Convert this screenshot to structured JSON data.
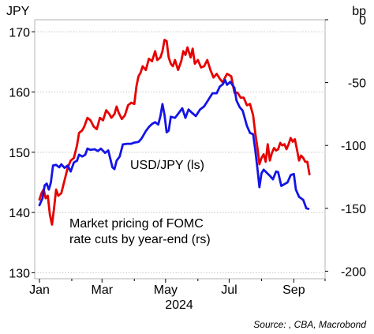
{
  "chart_data": {
    "type": "line",
    "left_axis_unit": "JPY",
    "right_axis_unit": "bp",
    "year_label": "2024",
    "source": "Source: , CBA, Macrobond",
    "grid": true,
    "ylim_left": [
      129,
      172
    ],
    "ylim_right": [
      -206,
      0
    ],
    "left_ticks": [
      130,
      140,
      150,
      160,
      170
    ],
    "right_ticks": [
      0,
      -50,
      -100,
      -150,
      -200
    ],
    "x_ticks": [
      {
        "label": "Jan",
        "day": 0
      },
      {
        "label": "Mar",
        "day": 60
      },
      {
        "label": "May",
        "day": 121
      },
      {
        "label": "Jul",
        "day": 182
      },
      {
        "label": "Sep",
        "day": 244
      }
    ],
    "xlim_days": [
      0,
      274
    ],
    "series": [
      {
        "name": "USD/JPY (ls)",
        "axis": "left",
        "color": "#1414e6",
        "points": [
          [
            0,
            141.2
          ],
          [
            3,
            142.4
          ],
          [
            5,
            144.5
          ],
          [
            7,
            144.8
          ],
          [
            9,
            143.8
          ],
          [
            11,
            145.0
          ],
          [
            13,
            147.8
          ],
          [
            16,
            147.9
          ],
          [
            19,
            147.5
          ],
          [
            21,
            148.0
          ],
          [
            24,
            147.4
          ],
          [
            27,
            147.8
          ],
          [
            30,
            146.8
          ],
          [
            33,
            148.3
          ],
          [
            36,
            148.6
          ],
          [
            38,
            149.6
          ],
          [
            41,
            149.3
          ],
          [
            44,
            149.6
          ],
          [
            46,
            150.6
          ],
          [
            49,
            150.4
          ],
          [
            53,
            150.5
          ],
          [
            56,
            150.2
          ],
          [
            59,
            150.6
          ],
          [
            63,
            149.9
          ],
          [
            66,
            150.3
          ],
          [
            70,
            147.5
          ],
          [
            72,
            147.2
          ],
          [
            74,
            148.6
          ],
          [
            77,
            149.3
          ],
          [
            80,
            151.3
          ],
          [
            84,
            151.4
          ],
          [
            88,
            151.4
          ],
          [
            91,
            151.6
          ],
          [
            95,
            151.7
          ],
          [
            98,
            152.3
          ],
          [
            102,
            153.5
          ],
          [
            105,
            154.2
          ],
          [
            108,
            154.7
          ],
          [
            111,
            155.0
          ],
          [
            114,
            154.6
          ],
          [
            116,
            156.0
          ],
          [
            118,
            158.0
          ],
          [
            120,
            156.2
          ],
          [
            122,
            153.3
          ],
          [
            124,
            153.6
          ],
          [
            126,
            155.9
          ],
          [
            130,
            155.7
          ],
          [
            134,
            156.6
          ],
          [
            137,
            157.3
          ],
          [
            140,
            155.7
          ],
          [
            143,
            157.1
          ],
          [
            146,
            156.6
          ],
          [
            150,
            156.0
          ],
          [
            154,
            157.1
          ],
          [
            158,
            157.6
          ],
          [
            162,
            158.7
          ],
          [
            166,
            159.8
          ],
          [
            170,
            159.8
          ],
          [
            173,
            160.9
          ],
          [
            176,
            161.3
          ],
          [
            178,
            162.0
          ],
          [
            180,
            161.2
          ],
          [
            183,
            161.7
          ],
          [
            187,
            160.7
          ],
          [
            189,
            158.6
          ],
          [
            192,
            157.5
          ],
          [
            195,
            156.9
          ],
          [
            199,
            154.4
          ],
          [
            202,
            153.2
          ],
          [
            205,
            153.0
          ],
          [
            207,
            150.4
          ],
          [
            209,
            147.5
          ],
          [
            211,
            144.2
          ],
          [
            213,
            146.5
          ],
          [
            215,
            147.1
          ],
          [
            218,
            146.6
          ],
          [
            221,
            146.1
          ],
          [
            224,
            145.5
          ],
          [
            227,
            146.8
          ],
          [
            229,
            146.7
          ],
          [
            232,
            144.4
          ],
          [
            235,
            144.7
          ],
          [
            238,
            145.0
          ],
          [
            241,
            146.2
          ],
          [
            244,
            146.4
          ],
          [
            246,
            143.8
          ],
          [
            249,
            142.6
          ],
          [
            253,
            142.1
          ],
          [
            256,
            140.7
          ],
          [
            258,
            140.6
          ]
        ]
      },
      {
        "name": "Market pricing of FOMC rate cuts by year-end (rs)",
        "axis": "right",
        "color": "#e60000",
        "points": [
          [
            0,
            -143
          ],
          [
            2,
            -138
          ],
          [
            4,
            -135
          ],
          [
            6,
            -142
          ],
          [
            8,
            -140
          ],
          [
            10,
            -155
          ],
          [
            12,
            -163
          ],
          [
            14,
            -150
          ],
          [
            16,
            -135
          ],
          [
            18,
            -140
          ],
          [
            21,
            -138
          ],
          [
            24,
            -128
          ],
          [
            27,
            -118
          ],
          [
            30,
            -112
          ],
          [
            33,
            -110
          ],
          [
            36,
            -100
          ],
          [
            38,
            -90
          ],
          [
            41,
            -88
          ],
          [
            43,
            -85
          ],
          [
            46,
            -78
          ],
          [
            49,
            -80
          ],
          [
            52,
            -85
          ],
          [
            55,
            -87
          ],
          [
            58,
            -78
          ],
          [
            61,
            -80
          ],
          [
            64,
            -72
          ],
          [
            67,
            -75
          ],
          [
            69,
            -78
          ],
          [
            72,
            -75
          ],
          [
            74,
            -69
          ],
          [
            76,
            -74
          ],
          [
            79,
            -79
          ],
          [
            82,
            -76
          ],
          [
            85,
            -68
          ],
          [
            88,
            -66
          ],
          [
            91,
            -67
          ],
          [
            93,
            -53
          ],
          [
            95,
            -45
          ],
          [
            97,
            -42
          ],
          [
            99,
            -37
          ],
          [
            102,
            -40
          ],
          [
            105,
            -31
          ],
          [
            108,
            -33
          ],
          [
            111,
            -25
          ],
          [
            113,
            -32
          ],
          [
            116,
            -30
          ],
          [
            118,
            -25
          ],
          [
            120,
            -16
          ],
          [
            122,
            -17
          ],
          [
            124,
            -30
          ],
          [
            126,
            -35
          ],
          [
            128,
            -37
          ],
          [
            130,
            -32
          ],
          [
            133,
            -40
          ],
          [
            136,
            -33
          ],
          [
            138,
            -25
          ],
          [
            140,
            -28
          ],
          [
            142,
            -22
          ],
          [
            145,
            -30
          ],
          [
            147,
            -23
          ],
          [
            149,
            -35
          ],
          [
            152,
            -32
          ],
          [
            155,
            -38
          ],
          [
            158,
            -37
          ],
          [
            161,
            -32
          ],
          [
            164,
            -40
          ],
          [
            167,
            -46
          ],
          [
            170,
            -43
          ],
          [
            173,
            -47
          ],
          [
            176,
            -50
          ],
          [
            178,
            -46
          ],
          [
            180,
            -43
          ],
          [
            182,
            -44
          ],
          [
            184,
            -45
          ],
          [
            187,
            -58
          ],
          [
            190,
            -58
          ],
          [
            193,
            -62
          ],
          [
            196,
            -62
          ],
          [
            199,
            -68
          ],
          [
            202,
            -67
          ],
          [
            205,
            -76
          ],
          [
            207,
            -90
          ],
          [
            209,
            -101
          ],
          [
            211,
            -115
          ],
          [
            213,
            -110
          ],
          [
            215,
            -107
          ],
          [
            217,
            -113
          ],
          [
            219,
            -99
          ],
          [
            221,
            -112
          ],
          [
            223,
            -106
          ],
          [
            225,
            -102
          ],
          [
            227,
            -104
          ],
          [
            229,
            -103
          ],
          [
            231,
            -98
          ],
          [
            233,
            -100
          ],
          [
            235,
            -99
          ],
          [
            237,
            -103
          ],
          [
            239,
            -99
          ],
          [
            241,
            -94
          ],
          [
            243,
            -97
          ],
          [
            245,
            -95
          ],
          [
            247,
            -103
          ],
          [
            249,
            -112
          ],
          [
            251,
            -108
          ],
          [
            253,
            -110
          ],
          [
            255,
            -113
          ],
          [
            257,
            -113
          ],
          [
            259,
            -123
          ]
        ]
      }
    ],
    "annotations": [
      {
        "text": "USD/JPY (ls)",
        "color": "#1414e6"
      },
      {
        "text": "Market pricing of FOMC",
        "color": "#e60000"
      },
      {
        "text": "rate cuts by year-end (rs)",
        "color": "#e60000"
      }
    ]
  }
}
